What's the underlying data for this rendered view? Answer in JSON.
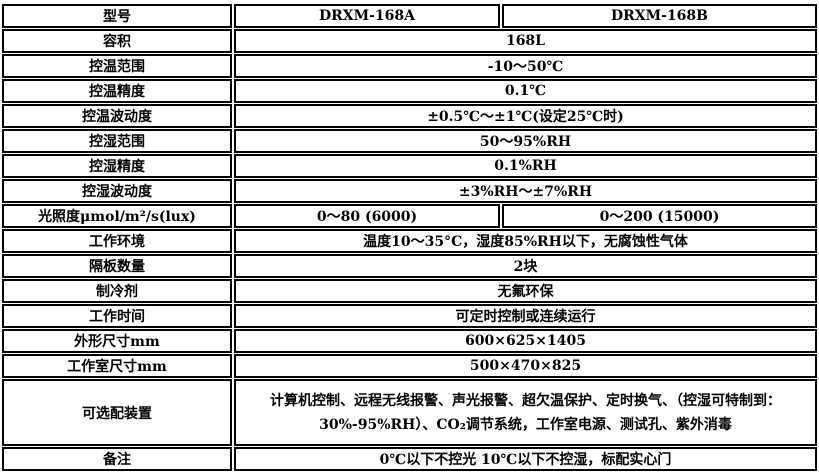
{
  "rows": [
    {
      "label": "型号",
      "values": [
        "DRXM-168A",
        "DRXM-168B"
      ]
    },
    {
      "label": "容积",
      "value": "168L"
    },
    {
      "label": "控温范围",
      "value": "-10～50℃"
    },
    {
      "label": "控温精度",
      "value": "0.1℃"
    },
    {
      "label": "控温波动度",
      "value": "±0.5℃～±1℃(设定25℃时)"
    },
    {
      "label": "控湿范围",
      "value": "50～95%RH"
    },
    {
      "label": "控湿精度",
      "value": "0.1%RH"
    },
    {
      "label": "控湿波动度",
      "value": "±3%RH～±7%RH"
    },
    {
      "label": "光照度μmol/m²/s(lux)",
      "values": [
        "0～80 (6000)",
        "0～200 (15000)"
      ]
    },
    {
      "label": "工作环境",
      "value": "温度10～35°C，湿度85%RH以下，无腐蚀性气体"
    },
    {
      "label": "隔板数量",
      "value": "2块"
    },
    {
      "label": "制冷剂",
      "value": "无氟环保"
    },
    {
      "label": "工作时间",
      "value": "可定时控制或连续运行"
    },
    {
      "label": "外形尺寸mm",
      "value": "600×625×1405"
    },
    {
      "label": "工作室尺寸mm",
      "value": "500×470×825"
    },
    {
      "label": "可选配装置",
      "value": "计算机控制、远程无线报警、声光报警、超欠温保护、定时换气、（控湿可特制到：30%-95%RH）、CO₂调节系统，工作室电源、测试孔、紫外消毒"
    },
    {
      "label": "备注",
      "value": "0℃以下不控光 10℃以下不控湿，标配实心门"
    }
  ]
}
